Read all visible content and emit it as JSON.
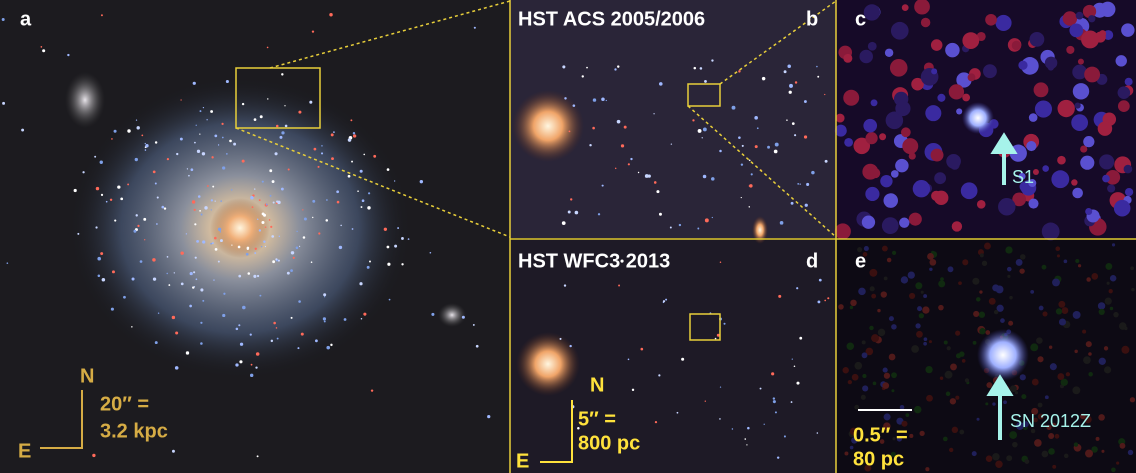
{
  "panels": [
    {
      "label": "a",
      "scale_bar": {
        "north": "N",
        "east": "E",
        "angle": "20″ =",
        "distance": "3.2 kpc"
      }
    },
    {
      "label": "b",
      "title": "HST ACS 2005/2006"
    },
    {
      "label": "c",
      "annotation": "S1"
    },
    {
      "label": "d",
      "title": "HST WFC3 2013",
      "scale_bar": {
        "north": "N",
        "east": "E",
        "angle": "5″ =",
        "distance": "800 pc"
      }
    },
    {
      "label": "e",
      "annotation": "SN 2012Z",
      "scale_bar": {
        "angle": "0.5″ =",
        "distance": "80 pc"
      }
    }
  ]
}
